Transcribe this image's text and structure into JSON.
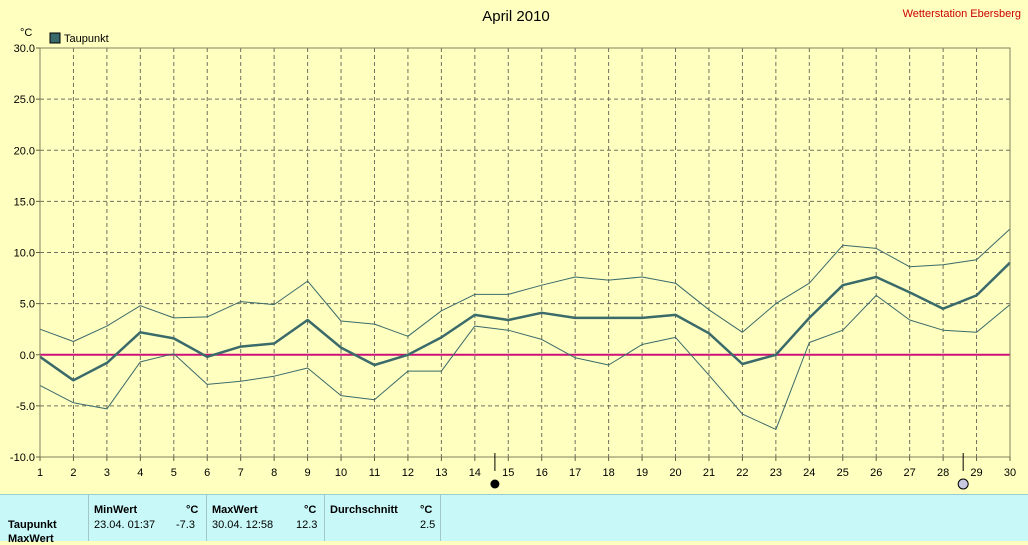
{
  "chart_data": {
    "type": "line",
    "title": "April 2010",
    "station": "Wetterstation Ebersberg",
    "ylabel": "°C",
    "ylim": [
      -10,
      30
    ],
    "yticks": [
      "30.0",
      "25.0",
      "20.0",
      "15.0",
      "10.0",
      "5.0",
      "0.0",
      "-5.0",
      "-10.0"
    ],
    "x": [
      1,
      2,
      3,
      4,
      5,
      6,
      7,
      8,
      9,
      10,
      11,
      12,
      13,
      14,
      15,
      16,
      17,
      18,
      19,
      20,
      21,
      22,
      23,
      24,
      25,
      26,
      27,
      28,
      29,
      30
    ],
    "grid": true,
    "legend_position": "top-left",
    "series": [
      {
        "name": "Taupunkt",
        "role": "mean",
        "color": "#3a6a6a",
        "values": [
          -0.2,
          -2.5,
          -0.8,
          2.2,
          1.6,
          -0.2,
          0.8,
          1.1,
          3.4,
          0.7,
          -1.0,
          0.0,
          1.7,
          3.9,
          3.4,
          4.1,
          3.6,
          3.6,
          3.6,
          3.9,
          2.1,
          -0.9,
          0.0,
          3.6,
          6.8,
          7.6,
          6.1,
          4.5,
          5.8,
          9.0
        ]
      },
      {
        "role": "max",
        "color": "#3a6a6a",
        "values": [
          2.5,
          1.3,
          2.8,
          4.8,
          3.6,
          3.7,
          5.2,
          4.9,
          7.2,
          3.3,
          3.0,
          1.8,
          4.3,
          5.9,
          5.9,
          6.8,
          7.6,
          7.3,
          7.6,
          7.0,
          4.4,
          2.2,
          5.0,
          7.0,
          10.7,
          10.4,
          8.6,
          8.8,
          9.3,
          12.3
        ]
      },
      {
        "role": "min",
        "color": "#3a6a6a",
        "values": [
          -3.0,
          -4.7,
          -5.3,
          -0.7,
          0.1,
          -2.9,
          -2.6,
          -2.1,
          -1.3,
          -4.0,
          -4.4,
          -1.6,
          -1.6,
          2.8,
          2.4,
          1.5,
          -0.3,
          -1.0,
          1.0,
          1.7,
          -2.0,
          -5.8,
          -7.3,
          1.2,
          2.4,
          5.8,
          3.4,
          2.4,
          2.2,
          4.9
        ]
      }
    ],
    "zero_line_color": "#cc1177",
    "moon_phases": [
      {
        "day": 14.6,
        "phase": "new"
      },
      {
        "day": 28.6,
        "phase": "full"
      }
    ]
  },
  "stats": {
    "headers": {
      "min": "MinWert",
      "max": "MaxWert",
      "avg": "Durchschnitt",
      "unit": "°C"
    },
    "rows": [
      {
        "label": "Taupunkt",
        "min_time": "23.04.  01:37",
        "min_val": "-7.3",
        "max_time": "30.04.  12:58",
        "max_val": "12.3",
        "avg_val": "2.5"
      },
      {
        "label": "MaxWert",
        "min_time": "",
        "min_val": "",
        "max_time": "",
        "max_val": "",
        "avg_val": ""
      }
    ]
  }
}
